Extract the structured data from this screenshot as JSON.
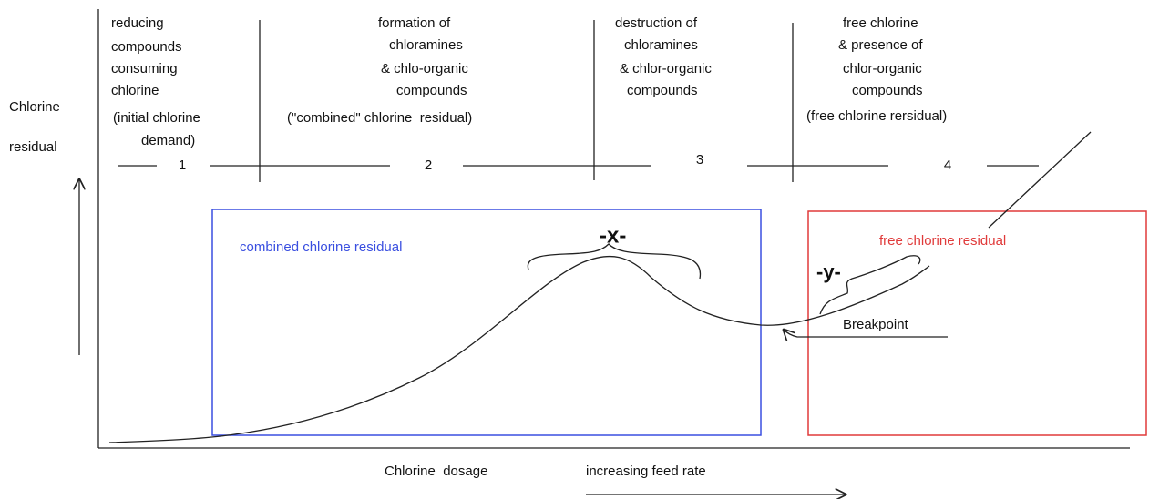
{
  "y_axis_label": [
    "Chlorine",
    "residual"
  ],
  "zones": [
    {
      "lines": [
        "reducing",
        "compounds",
        "consuming",
        "chlorine",
        "(initial chlorine",
        "demand)"
      ],
      "number": "1"
    },
    {
      "lines": [
        "formation of",
        "chloramines",
        "& chlo-organic",
        "compounds",
        "(\"combined\" chlorine  residual)"
      ],
      "number": "2"
    },
    {
      "lines": [
        "destruction of",
        "chloramines",
        "& chlor-organic",
        "compounds"
      ],
      "number": "3"
    },
    {
      "lines": [
        "free chlorine",
        "& presence of",
        "chlor-organic",
        "compounds",
        "(free chlorine rersidual)"
      ],
      "number": "4"
    }
  ],
  "boxes": {
    "combined": "combined chlorine residual",
    "free": "free chlorine residual"
  },
  "annotations": {
    "x": "-x-",
    "y": "-y-",
    "breakpoint": "Breakpoint"
  },
  "x_axis_label": [
    "Chlorine  dosage",
    "increasing feed rate"
  ]
}
